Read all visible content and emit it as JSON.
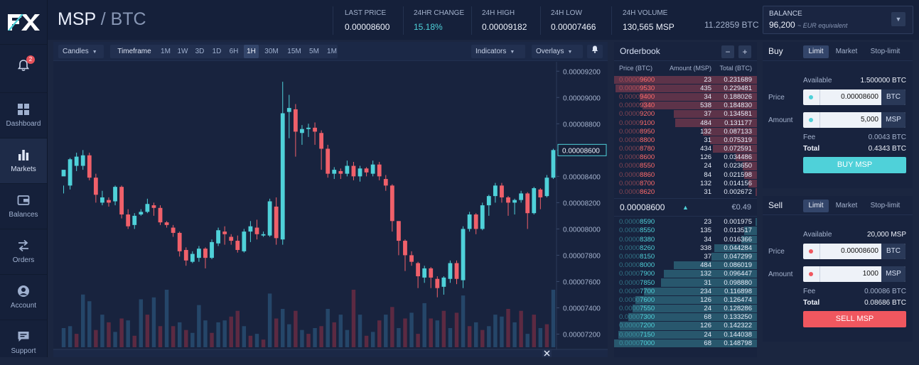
{
  "app": {
    "logo_text": "FX"
  },
  "sidebar": {
    "notifications_count": "2",
    "items": [
      {
        "label": "Dashboard"
      },
      {
        "label": "Markets"
      },
      {
        "label": "Balances"
      },
      {
        "label": "Orders"
      },
      {
        "label": "Account"
      },
      {
        "label": "Support"
      }
    ]
  },
  "header": {
    "base": "MSP",
    "slash": "/",
    "quote": "BTC",
    "stats": [
      {
        "label": "LAST PRICE",
        "value": "0.00008600"
      },
      {
        "label": "24HR CHANGE",
        "value": "15.18%"
      },
      {
        "label": "24H HIGH",
        "value": "0.00009182"
      },
      {
        "label": "24H LOW",
        "value": "0.00007466"
      },
      {
        "label": "24H VOLUME",
        "value": "130,565 MSP"
      }
    ],
    "volume_btc": "11.22859 BTC",
    "balance": {
      "label": "BALANCE",
      "value": "96,200",
      "note": "~ EUR equivalent"
    }
  },
  "chart_toolbar": {
    "type": "Candles",
    "timeframe_label": "Timeframe",
    "timeframes": [
      "1M",
      "1W",
      "3D",
      "1D",
      "6H",
      "1H",
      "30M",
      "15M",
      "5M",
      "1M"
    ],
    "selected": "1H",
    "indicators": "Indicators",
    "overlays": "Overlays"
  },
  "chart_data": {
    "type": "candlestick",
    "y_ticks": [
      "0.00009200",
      "0.00009000",
      "0.00008800",
      "0.00008600",
      "0.00008400",
      "0.00008200",
      "0.00008000",
      "0.00007800",
      "0.00007600",
      "0.00007400",
      "0.00007200"
    ],
    "ylim": [
      7.1e-05,
      9.25e-05
    ],
    "last_price": "0.00008600",
    "up_color": "#4fd1d9",
    "down_color": "#f0606a",
    "candles": [
      [
        8.4e-05,
        8.45e-05,
        8.33e-05,
        8.27e-05
      ],
      [
        8.33e-05,
        8.53e-05,
        8.54e-05,
        8.3e-05
      ],
      [
        8.48e-05,
        8.55e-05,
        8.58e-05,
        8.44e-05
      ],
      [
        8.48e-05,
        8.56e-05,
        8.6e-05,
        8.45e-05
      ],
      [
        8.56e-05,
        8.39e-05,
        8.58e-05,
        8.37e-05
      ],
      [
        8.39e-05,
        8.26e-05,
        8.42e-05,
        8.2e-05
      ],
      [
        8.2e-05,
        8.24e-05,
        8.29e-05,
        8.18e-05
      ],
      [
        8.22e-05,
        8.2e-05,
        8.24e-05,
        8.17e-05
      ],
      [
        8.21e-05,
        8.32e-05,
        8.33e-05,
        8.18e-05
      ],
      [
        8.32e-05,
        8.11e-05,
        8.33e-05,
        8.08e-05
      ],
      [
        8.11e-05,
        8.02e-05,
        8.15e-05,
        8e-05
      ],
      [
        8.03e-05,
        8.1e-05,
        8.12e-05,
        8e-05
      ],
      [
        8.11e-05,
        8.13e-05,
        8.15e-05,
        8.1e-05
      ],
      [
        8.13e-05,
        8.19e-05,
        8.23e-05,
        8.12e-05
      ],
      [
        8.18e-05,
        8.16e-05,
        8.2e-05,
        8.1e-05
      ],
      [
        8.16e-05,
        8.05e-05,
        8.18e-05,
        8.03e-05
      ],
      [
        8.05e-05,
        8.03e-05,
        8.06e-05,
        8.01e-05
      ],
      [
        8.01e-05,
        7.97e-05,
        8.03e-05,
        7.94e-05
      ],
      [
        7.97e-05,
        7.83e-05,
        7.98e-05,
        7.79e-05
      ],
      [
        7.84e-05,
        7.76e-05,
        7.86e-05,
        7.72e-05
      ],
      [
        7.75e-05,
        7.81e-05,
        7.83e-05,
        7.74e-05
      ],
      [
        7.78e-05,
        7.85e-05,
        7.87e-05,
        7.75e-05
      ],
      [
        7.85e-05,
        7.78e-05,
        7.86e-05,
        7.7e-05
      ],
      [
        7.78e-05,
        7.9e-05,
        7.92e-05,
        7.77e-05
      ],
      [
        7.89e-05,
        7.99e-05,
        8.01e-05,
        7.87e-05
      ],
      [
        7.98e-05,
        7.96e-05,
        8.02e-05,
        7.88e-05
      ],
      [
        7.94e-05,
        7.91e-05,
        7.96e-05,
        7.88e-05
      ],
      [
        7.91e-05,
        7.84e-05,
        7.95e-05,
        7.82e-05
      ],
      [
        7.83e-05,
        7.98e-05,
        8e-05,
        7.82e-05
      ],
      [
        7.98e-05,
        8.02e-05,
        8.06e-05,
        7.9e-05
      ],
      [
        8.01e-05,
        7.96e-05,
        8.07e-05,
        7.92e-05
      ],
      [
        7.95e-05,
        7.96e-05,
        7.98e-05,
        7.94e-05
      ],
      [
        7.95e-05,
        8.21e-05,
        8.23e-05,
        7.94e-05
      ],
      [
        8.17e-05,
        7.93e-05,
        8.24e-05,
        7.88e-05
      ],
      [
        7.92e-05,
        8.88e-05,
        9.12e-05,
        7.88e-05
      ],
      [
        8.89e-05,
        8.92e-05,
        9.02e-05,
        8.69e-05
      ],
      [
        8.91e-05,
        8.74e-05,
        8.95e-05,
        8.55e-05
      ],
      [
        8.73e-05,
        8.76e-05,
        8.79e-05,
        8.64e-05
      ],
      [
        8.76e-05,
        8.77e-05,
        8.8e-05,
        8.7e-05
      ],
      [
        8.77e-05,
        8.74e-05,
        8.81e-05,
        8.64e-05
      ],
      [
        8.73e-05,
        8.61e-05,
        8.75e-05,
        8.45e-05
      ],
      [
        8.61e-05,
        8.42e-05,
        8.64e-05,
        8.39e-05
      ],
      [
        8.42e-05,
        8.45e-05,
        8.47e-05,
        8.38e-05
      ],
      [
        8.44e-05,
        8.42e-05,
        8.46e-05,
        8.38e-05
      ],
      [
        8.42e-05,
        8.48e-05,
        8.52e-05,
        8.4e-05
      ],
      [
        8.48e-05,
        8.4e-05,
        8.51e-05,
        8.37e-05
      ],
      [
        8.4e-05,
        8.46e-05,
        8.48e-05,
        8.36e-05
      ],
      [
        8.46e-05,
        8.43e-05,
        8.47e-05,
        8.4e-05
      ],
      [
        8.42e-05,
        8.49e-05,
        8.52e-05,
        8.4e-05
      ],
      [
        8.49e-05,
        8.4e-05,
        8.51e-05,
        8.37e-05
      ],
      [
        8.38e-05,
        8.33e-05,
        8.41e-05,
        8.29e-05
      ],
      [
        8.33e-05,
        8.06e-05,
        8.34e-05,
        7.98e-05
      ],
      [
        8.06e-05,
        7.91e-05,
        8.06e-05,
        7.8e-05
      ],
      [
        7.91e-05,
        7.8e-05,
        7.92e-05,
        7.68e-05
      ],
      [
        7.8e-05,
        7.75e-05,
        7.83e-05,
        7.72e-05
      ],
      [
        7.74e-05,
        7.64e-05,
        7.75e-05,
        7.55e-05
      ],
      [
        7.63e-05,
        7.7e-05,
        7.72e-05,
        7.59e-05
      ],
      [
        7.7e-05,
        7.63e-05,
        7.71e-05,
        7.55e-05
      ],
      [
        7.62e-05,
        7.55e-05,
        7.64e-05,
        7.48e-05
      ],
      [
        7.56e-05,
        7.63e-05,
        7.64e-05,
        7.5e-05
      ],
      [
        7.62e-05,
        7.74e-05,
        7.76e-05,
        7.59e-05
      ],
      [
        7.74e-05,
        7.62e-05,
        7.76e-05,
        7.58e-05
      ],
      [
        7.61e-05,
        8e-05,
        8.02e-05,
        7.55e-05
      ],
      [
        8e-05,
        8.11e-05,
        8.13e-05,
        7.98e-05
      ],
      [
        8.11e-05,
        8e-05,
        8.12e-05,
        7.96e-05
      ],
      [
        8e-05,
        8.18e-05,
        8.2e-05,
        7.99e-05
      ],
      [
        8.18e-05,
        8.25e-05,
        8.26e-05,
        8.1e-05
      ],
      [
        8.25e-05,
        8.33e-05,
        8.35e-05,
        8.2e-05
      ],
      [
        8.33e-05,
        8.24e-05,
        8.35e-05,
        8.2e-05
      ],
      [
        8.24e-05,
        8.2e-05,
        8.25e-05,
        8.1e-05
      ],
      [
        8.2e-05,
        8.22e-05,
        8.23e-05,
        8.11e-05
      ],
      [
        8.22e-05,
        8.27e-05,
        8.29e-05,
        8.2e-05
      ],
      [
        8.27e-05,
        8.12e-05,
        8.28e-05,
        8e-05
      ],
      [
        8.12e-05,
        8.31e-05,
        8.32e-05,
        8.11e-05
      ],
      [
        8.3e-05,
        8.24e-05,
        8.31e-05,
        8.15e-05
      ],
      [
        8.25e-05,
        8.39e-05,
        8.41e-05,
        8.24e-05
      ],
      [
        8.39e-05,
        8.6e-05,
        8.61e-05,
        8.38e-05
      ]
    ],
    "volumes": [
      20,
      22,
      14,
      55,
      48,
      18,
      34,
      26,
      16,
      30,
      28,
      12,
      50,
      34,
      52,
      22,
      60,
      22,
      26,
      18,
      15,
      44,
      28,
      15,
      26,
      28,
      32,
      38,
      22,
      12,
      14,
      8,
      56,
      30,
      40,
      24,
      38,
      18,
      14,
      20,
      22,
      40,
      26,
      34,
      18,
      60,
      34,
      12,
      16,
      28,
      34,
      42,
      20,
      30,
      36,
      14,
      46,
      30,
      28,
      38,
      20,
      36,
      54,
      22,
      26,
      18,
      22,
      34,
      32,
      40,
      26,
      38,
      14,
      34,
      20,
      24,
      60
    ],
    "volume_colors": [
      0,
      0,
      1,
      0,
      0,
      1,
      0,
      1,
      0,
      1,
      0,
      1,
      0,
      1,
      0,
      1,
      0,
      1,
      0,
      1,
      0,
      0,
      0,
      1,
      0,
      0,
      1,
      1,
      0,
      1,
      0,
      1,
      0,
      1,
      0,
      0,
      1,
      0,
      1,
      0,
      1,
      0,
      1,
      0,
      0,
      1,
      0,
      1,
      0,
      1,
      0,
      1,
      0,
      1,
      0,
      1,
      0,
      1,
      0,
      1,
      0,
      1,
      0,
      1,
      0,
      1,
      0,
      0,
      0,
      1,
      0,
      1,
      0,
      1,
      0,
      1,
      0
    ]
  },
  "orderbook": {
    "title": "Orderbook",
    "minus": "−",
    "plus": "+",
    "columns": [
      "Price (BTC)",
      "Amount (MSP)",
      "Total (BTC)"
    ],
    "asks": [
      {
        "dim": "0.0000",
        "price": "9600",
        "amount": "23",
        "total": "0.231689",
        "depth": 1.0
      },
      {
        "dim": "0.0000",
        "price": "9530",
        "amount": "435",
        "total": "0.229481",
        "depth": 0.99
      },
      {
        "dim": "0.0000",
        "price": "9400",
        "amount": "34",
        "total": "0.188026",
        "depth": 0.82
      },
      {
        "dim": "0.0000",
        "price": "9340",
        "amount": "538",
        "total": "0.184830",
        "depth": 0.8
      },
      {
        "dim": "0.0000",
        "price": "9200",
        "amount": "37",
        "total": "0.134581",
        "depth": 0.58
      },
      {
        "dim": "0.0000",
        "price": "9100",
        "amount": "484",
        "total": "0.131177",
        "depth": 0.57
      },
      {
        "dim": "0.0000",
        "price": "8950",
        "amount": "132",
        "total": "0.087133",
        "depth": 0.38
      },
      {
        "dim": "0.0000",
        "price": "8800",
        "amount": "31",
        "total": "0.075319",
        "depth": 0.33
      },
      {
        "dim": "0.0000",
        "price": "8780",
        "amount": "434",
        "total": "0.072591",
        "depth": 0.31
      },
      {
        "dim": "0.0000",
        "price": "8600",
        "amount": "126",
        "total": "0.034486",
        "depth": 0.15
      },
      {
        "dim": "0.0000",
        "price": "8550",
        "amount": "24",
        "total": "0.023650",
        "depth": 0.1
      },
      {
        "dim": "0.0000",
        "price": "8860",
        "amount": "84",
        "total": "0.021598",
        "depth": 0.09
      },
      {
        "dim": "0.0000",
        "price": "8700",
        "amount": "132",
        "total": "0.014156",
        "depth": 0.06
      },
      {
        "dim": "0.0000",
        "price": "8620",
        "amount": "31",
        "total": "0.002672",
        "depth": 0.01
      }
    ],
    "mid_price": "0.00008600",
    "mid_eur": "€0.49",
    "bids": [
      {
        "dim": "0.0000",
        "price": "8590",
        "amount": "23",
        "total": "0.001975",
        "depth": 0.01
      },
      {
        "dim": "0.0000",
        "price": "8550",
        "amount": "135",
        "total": "0.013517",
        "depth": 0.09
      },
      {
        "dim": "0.0000",
        "price": "8380",
        "amount": "34",
        "total": "0.016366",
        "depth": 0.11
      },
      {
        "dim": "0.0000",
        "price": "8260",
        "amount": "338",
        "total": "0.044284",
        "depth": 0.3
      },
      {
        "dim": "0.0000",
        "price": "8150",
        "amount": "37",
        "total": "0.047299",
        "depth": 0.32
      },
      {
        "dim": "0.0000",
        "price": "8000",
        "amount": "484",
        "total": "0.086019",
        "depth": 0.58
      },
      {
        "dim": "0.0000",
        "price": "7900",
        "amount": "132",
        "total": "0.096447",
        "depth": 0.65
      },
      {
        "dim": "0.0000",
        "price": "7850",
        "amount": "31",
        "total": "0.098880",
        "depth": 0.67
      },
      {
        "dim": "0.0000",
        "price": "7700",
        "amount": "234",
        "total": "0.116898",
        "depth": 0.79
      },
      {
        "dim": "0.0000",
        "price": "7600",
        "amount": "126",
        "total": "0.126474",
        "depth": 0.85
      },
      {
        "dim": "0.0000",
        "price": "7550",
        "amount": "24",
        "total": "0.128286",
        "depth": 0.87
      },
      {
        "dim": "0.0000",
        "price": "7300",
        "amount": "68",
        "total": "0.133250",
        "depth": 0.9
      },
      {
        "dim": "0.0000",
        "price": "7200",
        "amount": "126",
        "total": "0.142322",
        "depth": 0.96
      },
      {
        "dim": "0.0000",
        "price": "7150",
        "amount": "24",
        "total": "0.144038",
        "depth": 0.97
      },
      {
        "dim": "0.0000",
        "price": "7000",
        "amount": "68",
        "total": "0.148798",
        "depth": 1.0
      }
    ]
  },
  "buy": {
    "title": "Buy",
    "tabs": [
      "Limit",
      "Market",
      "Stop-limit"
    ],
    "available_label": "Available",
    "available_value": "1.500000 BTC",
    "price_label": "Price",
    "price_value": "0.00008600",
    "price_unit": "BTC",
    "amount_label": "Amount",
    "amount_value": "5,000",
    "amount_unit": "MSP",
    "fee_label": "Fee",
    "fee_value": "0.0043 BTC",
    "total_label": "Total",
    "total_value": "0.4343 BTC",
    "button": "BUY MSP"
  },
  "sell": {
    "title": "Sell",
    "tabs": [
      "Limit",
      "Market",
      "Stop-limit"
    ],
    "available_label": "Available",
    "available_value": "20,000 MSP",
    "price_label": "Price",
    "price_value": "0.00008600",
    "price_unit": "BTC",
    "amount_label": "Amount",
    "amount_value": "1000",
    "amount_unit": "MSP",
    "fee_label": "Fee",
    "fee_value": "0.00086 BTC",
    "total_label": "Total",
    "total_value": "0.08686 BTC",
    "button": "SELL MSP"
  },
  "colors": {
    "accent": "#4fd1d9",
    "sell": "#f0575f",
    "bg": "#1b2640"
  }
}
